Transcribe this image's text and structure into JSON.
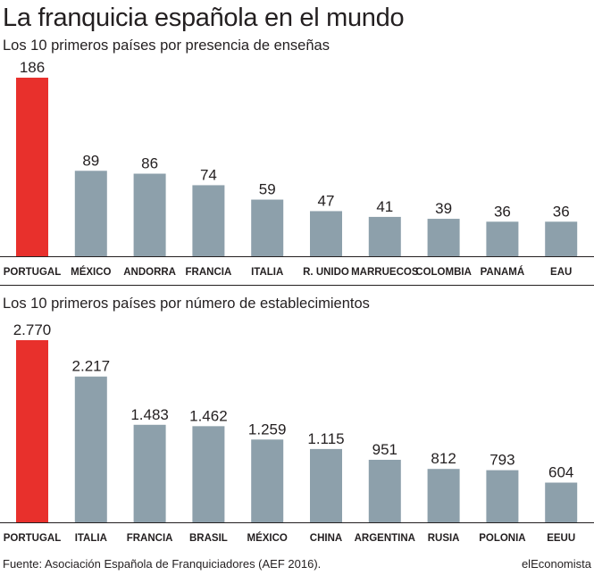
{
  "title": "La franquicia española en el mundo",
  "source": "Fuente: Asociación Española de Franquiciadores (AEF 2016).",
  "brand": "elEconomista",
  "colors": {
    "highlight": "#e8302c",
    "bar": "#8da0ab",
    "text": "#231f20"
  },
  "chart_data": [
    {
      "type": "bar",
      "title": "Los 10 primeros países por presencia de enseñas",
      "categories": [
        "PORTUGAL",
        "MÉXICO",
        "ANDORRA",
        "FRANCIA",
        "ITALIA",
        "R. UNIDO",
        "MARRUECOS",
        "COLOMBIA",
        "PANAMÁ",
        "EAU"
      ],
      "values": [
        186,
        89,
        86,
        74,
        59,
        47,
        41,
        39,
        36,
        36
      ],
      "value_labels": [
        "186",
        "89",
        "86",
        "74",
        "59",
        "47",
        "41",
        "39",
        "36",
        "36"
      ],
      "highlight_index": 0,
      "ylim": [
        0,
        186
      ],
      "grid": false
    },
    {
      "type": "bar",
      "title": "Los 10 primeros países por número de establecimientos",
      "categories": [
        "PORTUGAL",
        "ITALIA",
        "FRANCIA",
        "BRASIL",
        "MÉXICO",
        "CHINA",
        "ARGENTINA",
        "RUSIA",
        "POLONIA",
        "EEUU"
      ],
      "values": [
        2770,
        2217,
        1483,
        1462,
        1259,
        1115,
        951,
        812,
        793,
        604
      ],
      "value_labels": [
        "2.770",
        "2.217",
        "1.483",
        "1.462",
        "1.259",
        "1.115",
        "951",
        "812",
        "793",
        "604"
      ],
      "highlight_index": 0,
      "ylim": [
        0,
        2770
      ],
      "grid": false
    }
  ]
}
